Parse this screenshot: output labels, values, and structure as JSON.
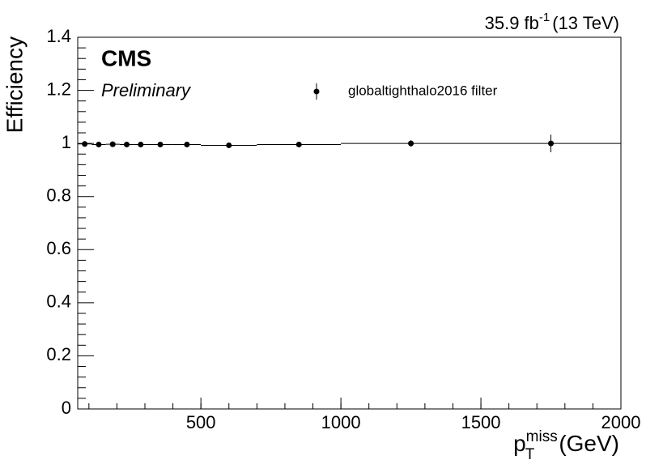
{
  "chart_data": {
    "type": "scatter",
    "lumi": "35.9 fb",
    "lumi_exponent": "-1",
    "energy": "(13 TeV)",
    "experiment": "CMS",
    "status": "Preliminary",
    "y_label": "Efficiency",
    "x_label": {
      "symbol": "p",
      "subscript": "T",
      "superscript": "miss",
      "unit": "(GeV)"
    },
    "series": [
      {
        "name": "globaltighthalo2016 filter",
        "color": "#000000",
        "x": [
          85,
          135,
          185,
          235,
          285,
          355,
          450,
          600,
          850,
          1250,
          1750
        ],
        "x_err": [
          25,
          25,
          25,
          25,
          25,
          45,
          50,
          100,
          150,
          250,
          250
        ],
        "values": [
          0.998,
          0.996,
          0.997,
          0.996,
          0.996,
          0.996,
          0.996,
          0.993,
          0.996,
          1.0,
          1.0
        ],
        "errors": [
          0.003,
          0.002,
          0.002,
          0.002,
          0.002,
          0.002,
          0.003,
          0.003,
          0.004,
          0.012,
          0.033
        ]
      }
    ],
    "xlim": [
      60,
      2000
    ],
    "xticks": [
      500,
      1000,
      1500,
      2000
    ],
    "ylim": [
      0,
      1.4
    ],
    "yticks": [
      0,
      0.2,
      0.4,
      0.6,
      0.8,
      1,
      1.2,
      1.4
    ],
    "grid": false
  }
}
